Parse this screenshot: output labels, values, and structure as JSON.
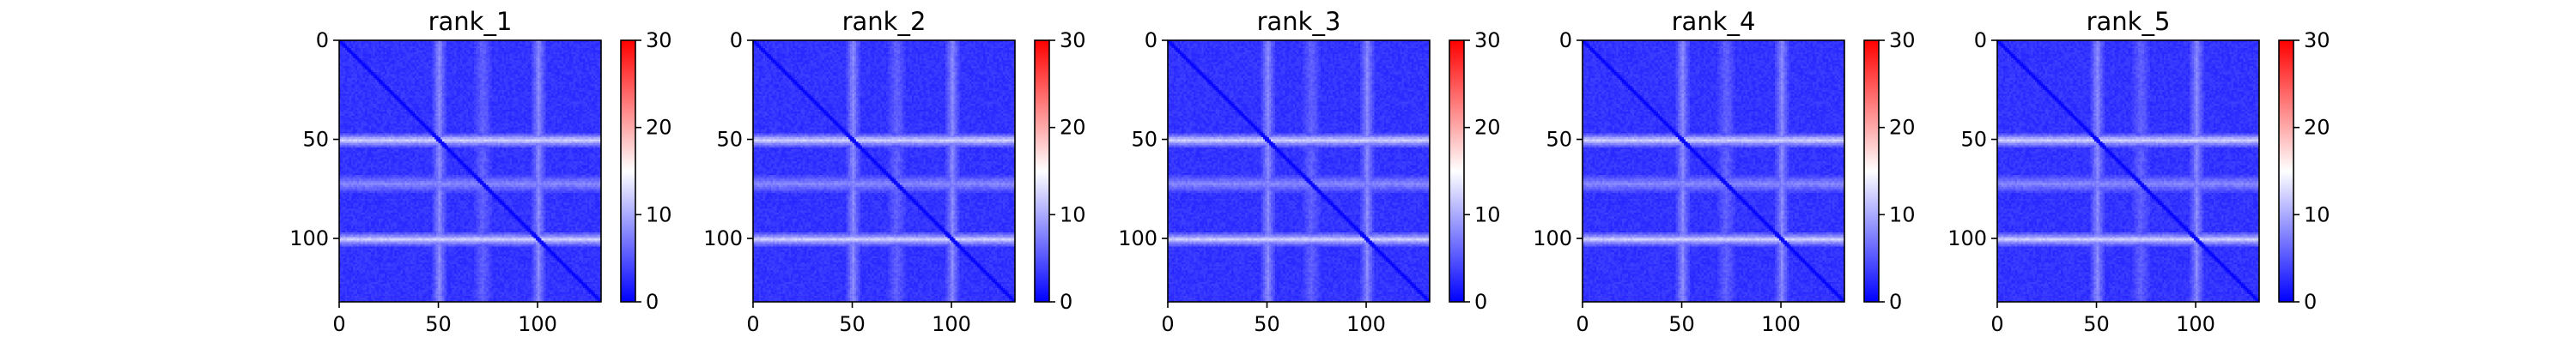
{
  "chart_data": [
    {
      "type": "heatmap",
      "title": "rank_1",
      "matrix_size": 132,
      "xlim": [
        0,
        132
      ],
      "ylim": [
        132,
        0
      ],
      "xticks": [
        0,
        50,
        100
      ],
      "yticks": [
        0,
        50,
        100
      ],
      "colorbar": {
        "vmin": 0,
        "vmax": 30,
        "ticks": [
          0,
          10,
          20,
          30
        ],
        "colormap": "bwr"
      },
      "value_summary": {
        "background": 3,
        "diagonal": 0,
        "bright_rows": [
          50,
          100
        ],
        "bright_row_value": 12,
        "medium_rows": [
          72
        ],
        "medium_row_value": 8
      }
    },
    {
      "type": "heatmap",
      "title": "rank_2",
      "matrix_size": 132,
      "xlim": [
        0,
        132
      ],
      "ylim": [
        132,
        0
      ],
      "xticks": [
        0,
        50,
        100
      ],
      "yticks": [
        0,
        50,
        100
      ],
      "colorbar": {
        "vmin": 0,
        "vmax": 30,
        "ticks": [
          0,
          10,
          20,
          30
        ],
        "colormap": "bwr"
      },
      "value_summary": {
        "background": 3,
        "diagonal": 0,
        "bright_rows": [
          50,
          100
        ],
        "bright_row_value": 12,
        "medium_rows": [
          72
        ],
        "medium_row_value": 8
      }
    },
    {
      "type": "heatmap",
      "title": "rank_3",
      "matrix_size": 132,
      "xlim": [
        0,
        132
      ],
      "ylim": [
        132,
        0
      ],
      "xticks": [
        0,
        50,
        100
      ],
      "yticks": [
        0,
        50,
        100
      ],
      "colorbar": {
        "vmin": 0,
        "vmax": 30,
        "ticks": [
          0,
          10,
          20,
          30
        ],
        "colormap": "bwr"
      },
      "value_summary": {
        "background": 3,
        "diagonal": 0,
        "bright_rows": [
          50,
          100
        ],
        "bright_row_value": 12,
        "medium_rows": [
          72
        ],
        "medium_row_value": 8
      }
    },
    {
      "type": "heatmap",
      "title": "rank_4",
      "matrix_size": 132,
      "xlim": [
        0,
        132
      ],
      "ylim": [
        132,
        0
      ],
      "xticks": [
        0,
        50,
        100
      ],
      "yticks": [
        0,
        50,
        100
      ],
      "colorbar": {
        "vmin": 0,
        "vmax": 30,
        "ticks": [
          0,
          10,
          20,
          30
        ],
        "colormap": "bwr"
      },
      "value_summary": {
        "background": 3,
        "diagonal": 0,
        "bright_rows": [
          50,
          100
        ],
        "bright_row_value": 12,
        "medium_rows": [
          72
        ],
        "medium_row_value": 8
      }
    },
    {
      "type": "heatmap",
      "title": "rank_5",
      "matrix_size": 132,
      "xlim": [
        0,
        132
      ],
      "ylim": [
        132,
        0
      ],
      "xticks": [
        0,
        50,
        100
      ],
      "yticks": [
        0,
        50,
        100
      ],
      "colorbar": {
        "vmin": 0,
        "vmax": 30,
        "ticks": [
          0,
          10,
          20,
          30
        ],
        "colormap": "bwr"
      },
      "value_summary": {
        "background": 3,
        "diagonal": 0,
        "bright_rows": [
          50,
          100
        ],
        "bright_row_value": 12,
        "medium_rows": [
          72
        ],
        "medium_row_value": 8
      }
    }
  ],
  "colors": {
    "low": "#0000ff",
    "mid": "#ffffff",
    "high": "#ff0000"
  }
}
